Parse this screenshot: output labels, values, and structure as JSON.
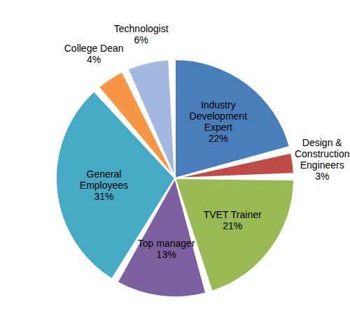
{
  "chart_data": {
    "type": "pie",
    "categories": [
      "Industry Development Expert",
      "Design & Construction Engineers",
      "TVET Trainer",
      "Top manager",
      "General Employees",
      "College Dean",
      "Technologist"
    ],
    "values": [
      22,
      3,
      21,
      13,
      31,
      4,
      6
    ],
    "value_labels": [
      "22%",
      "3%",
      "21%",
      "13%",
      "31%",
      "4%",
      "6%"
    ],
    "colors": [
      "#4a7ebb",
      "#be4b48",
      "#98b954",
      "#7d60a0",
      "#46aac5",
      "#f79646",
      "#a5b9e0"
    ],
    "data_labels": true
  }
}
